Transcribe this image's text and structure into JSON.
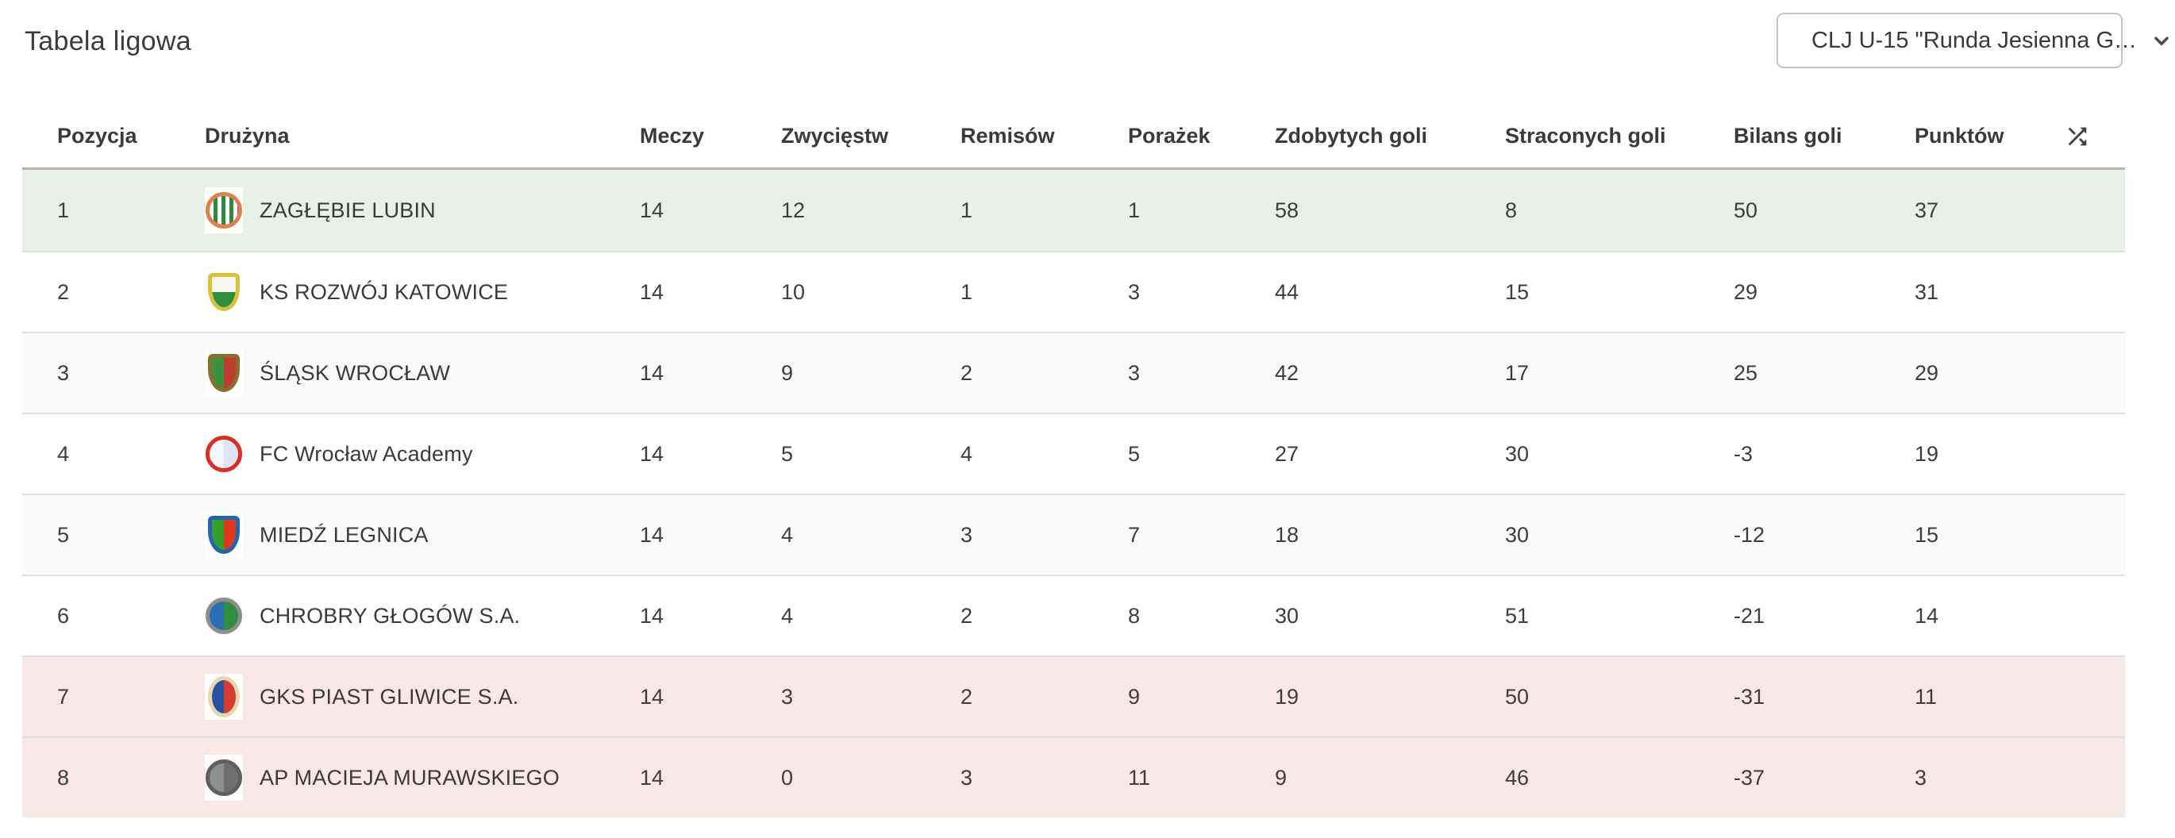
{
  "page": {
    "title": "Tabela ligowa"
  },
  "filter": {
    "value": "CLJ U-15 \"Runda Jesienna G…",
    "chevron_icon": "chevron-down"
  },
  "colors": {
    "promotion_row": "#e7f1e8",
    "relegation_row": "#fae8e6",
    "zebra_row": "#fafafa",
    "row_separator": "#dedede",
    "header_border": "#b3b3b3",
    "text": "#3d3d3d"
  },
  "table": {
    "columns": [
      "Pozycja",
      "Drużyna",
      "Meczy",
      "Zwycięstw",
      "Remisów",
      "Porażek",
      "Zdobytych goli",
      "Straconych goli",
      "Bilans goli",
      "Punktów"
    ],
    "shuffle_icon": "shuffle",
    "row_keys": [
      "matches",
      "wins",
      "draws",
      "losses",
      "goals_for",
      "goals_against",
      "goal_diff",
      "points"
    ],
    "rows": [
      {
        "position": "1",
        "team": "ZAGŁĘBIE LUBIN",
        "matches": "14",
        "wins": "12",
        "draws": "1",
        "losses": "1",
        "goals_for": "58",
        "goals_against": "8",
        "goal_diff": "50",
        "points": "37",
        "highlight": "promotion",
        "crest": {
          "shape": "circle",
          "border": "#e0804d",
          "primary": "#2e8b3a",
          "secondary": "#ffffff",
          "stripes": true
        }
      },
      {
        "position": "2",
        "team": "KS ROZWÓJ KATOWICE",
        "matches": "14",
        "wins": "10",
        "draws": "1",
        "losses": "3",
        "goals_for": "44",
        "goals_against": "15",
        "goal_diff": "29",
        "points": "31",
        "highlight": "none",
        "crest": {
          "shape": "shield",
          "border": "#d8c23c",
          "primary": "#f7f7ef",
          "secondary": "#2f8f3f",
          "split": "h"
        }
      },
      {
        "position": "3",
        "team": "ŚLĄSK WROCŁAW",
        "matches": "14",
        "wins": "9",
        "draws": "2",
        "losses": "3",
        "goals_for": "42",
        "goals_against": "17",
        "goal_diff": "25",
        "points": "29",
        "highlight": "none",
        "crest": {
          "shape": "shield",
          "border": "#8a6d2f",
          "primary": "#3c8f3c",
          "secondary": "#c03b2f",
          "split": "v"
        }
      },
      {
        "position": "4",
        "team": "FC Wrocław Academy",
        "matches": "14",
        "wins": "5",
        "draws": "4",
        "losses": "5",
        "goals_for": "27",
        "goals_against": "30",
        "goal_diff": "-3",
        "points": "19",
        "highlight": "none",
        "crest": {
          "shape": "circle",
          "border": "#d93025",
          "primary": "#f5f6fb",
          "secondary": "#dfe4f2",
          "split": "v"
        }
      },
      {
        "position": "5",
        "team": "MIEDŹ LEGNICA",
        "matches": "14",
        "wins": "4",
        "draws": "3",
        "losses": "7",
        "goals_for": "18",
        "goals_against": "30",
        "goal_diff": "-12",
        "points": "15",
        "highlight": "none",
        "crest": {
          "shape": "shield",
          "border": "#2166ac",
          "primary": "#33a02c",
          "secondary": "#e0391e",
          "split": "v"
        }
      },
      {
        "position": "6",
        "team": "CHROBRY GŁOGÓW S.A.",
        "matches": "14",
        "wins": "4",
        "draws": "2",
        "losses": "8",
        "goals_for": "30",
        "goals_against": "51",
        "goal_diff": "-21",
        "points": "14",
        "highlight": "none",
        "crest": {
          "shape": "circle",
          "border": "#8d8d8d",
          "primary": "#2a6fb0",
          "secondary": "#2f8f3f",
          "split": "v"
        }
      },
      {
        "position": "7",
        "team": "GKS PIAST GLIWICE S.A.",
        "matches": "14",
        "wins": "3",
        "draws": "2",
        "losses": "9",
        "goals_for": "19",
        "goals_against": "50",
        "goal_diff": "-31",
        "points": "11",
        "highlight": "relegation",
        "crest": {
          "shape": "oval",
          "border": "#e6d9ad",
          "primary": "#2a4fa0",
          "secondary": "#d63c2f",
          "split": "v"
        }
      },
      {
        "position": "8",
        "team": "AP MACIEJA MURAWSKIEGO",
        "matches": "14",
        "wins": "0",
        "draws": "3",
        "losses": "11",
        "goals_for": "9",
        "goals_against": "46",
        "goal_diff": "-37",
        "points": "3",
        "highlight": "relegation",
        "crest": {
          "shape": "circle",
          "border": "#5f5f5f",
          "primary": "#8f8f8f",
          "secondary": "#6f6f6f",
          "split": "v"
        }
      }
    ]
  }
}
